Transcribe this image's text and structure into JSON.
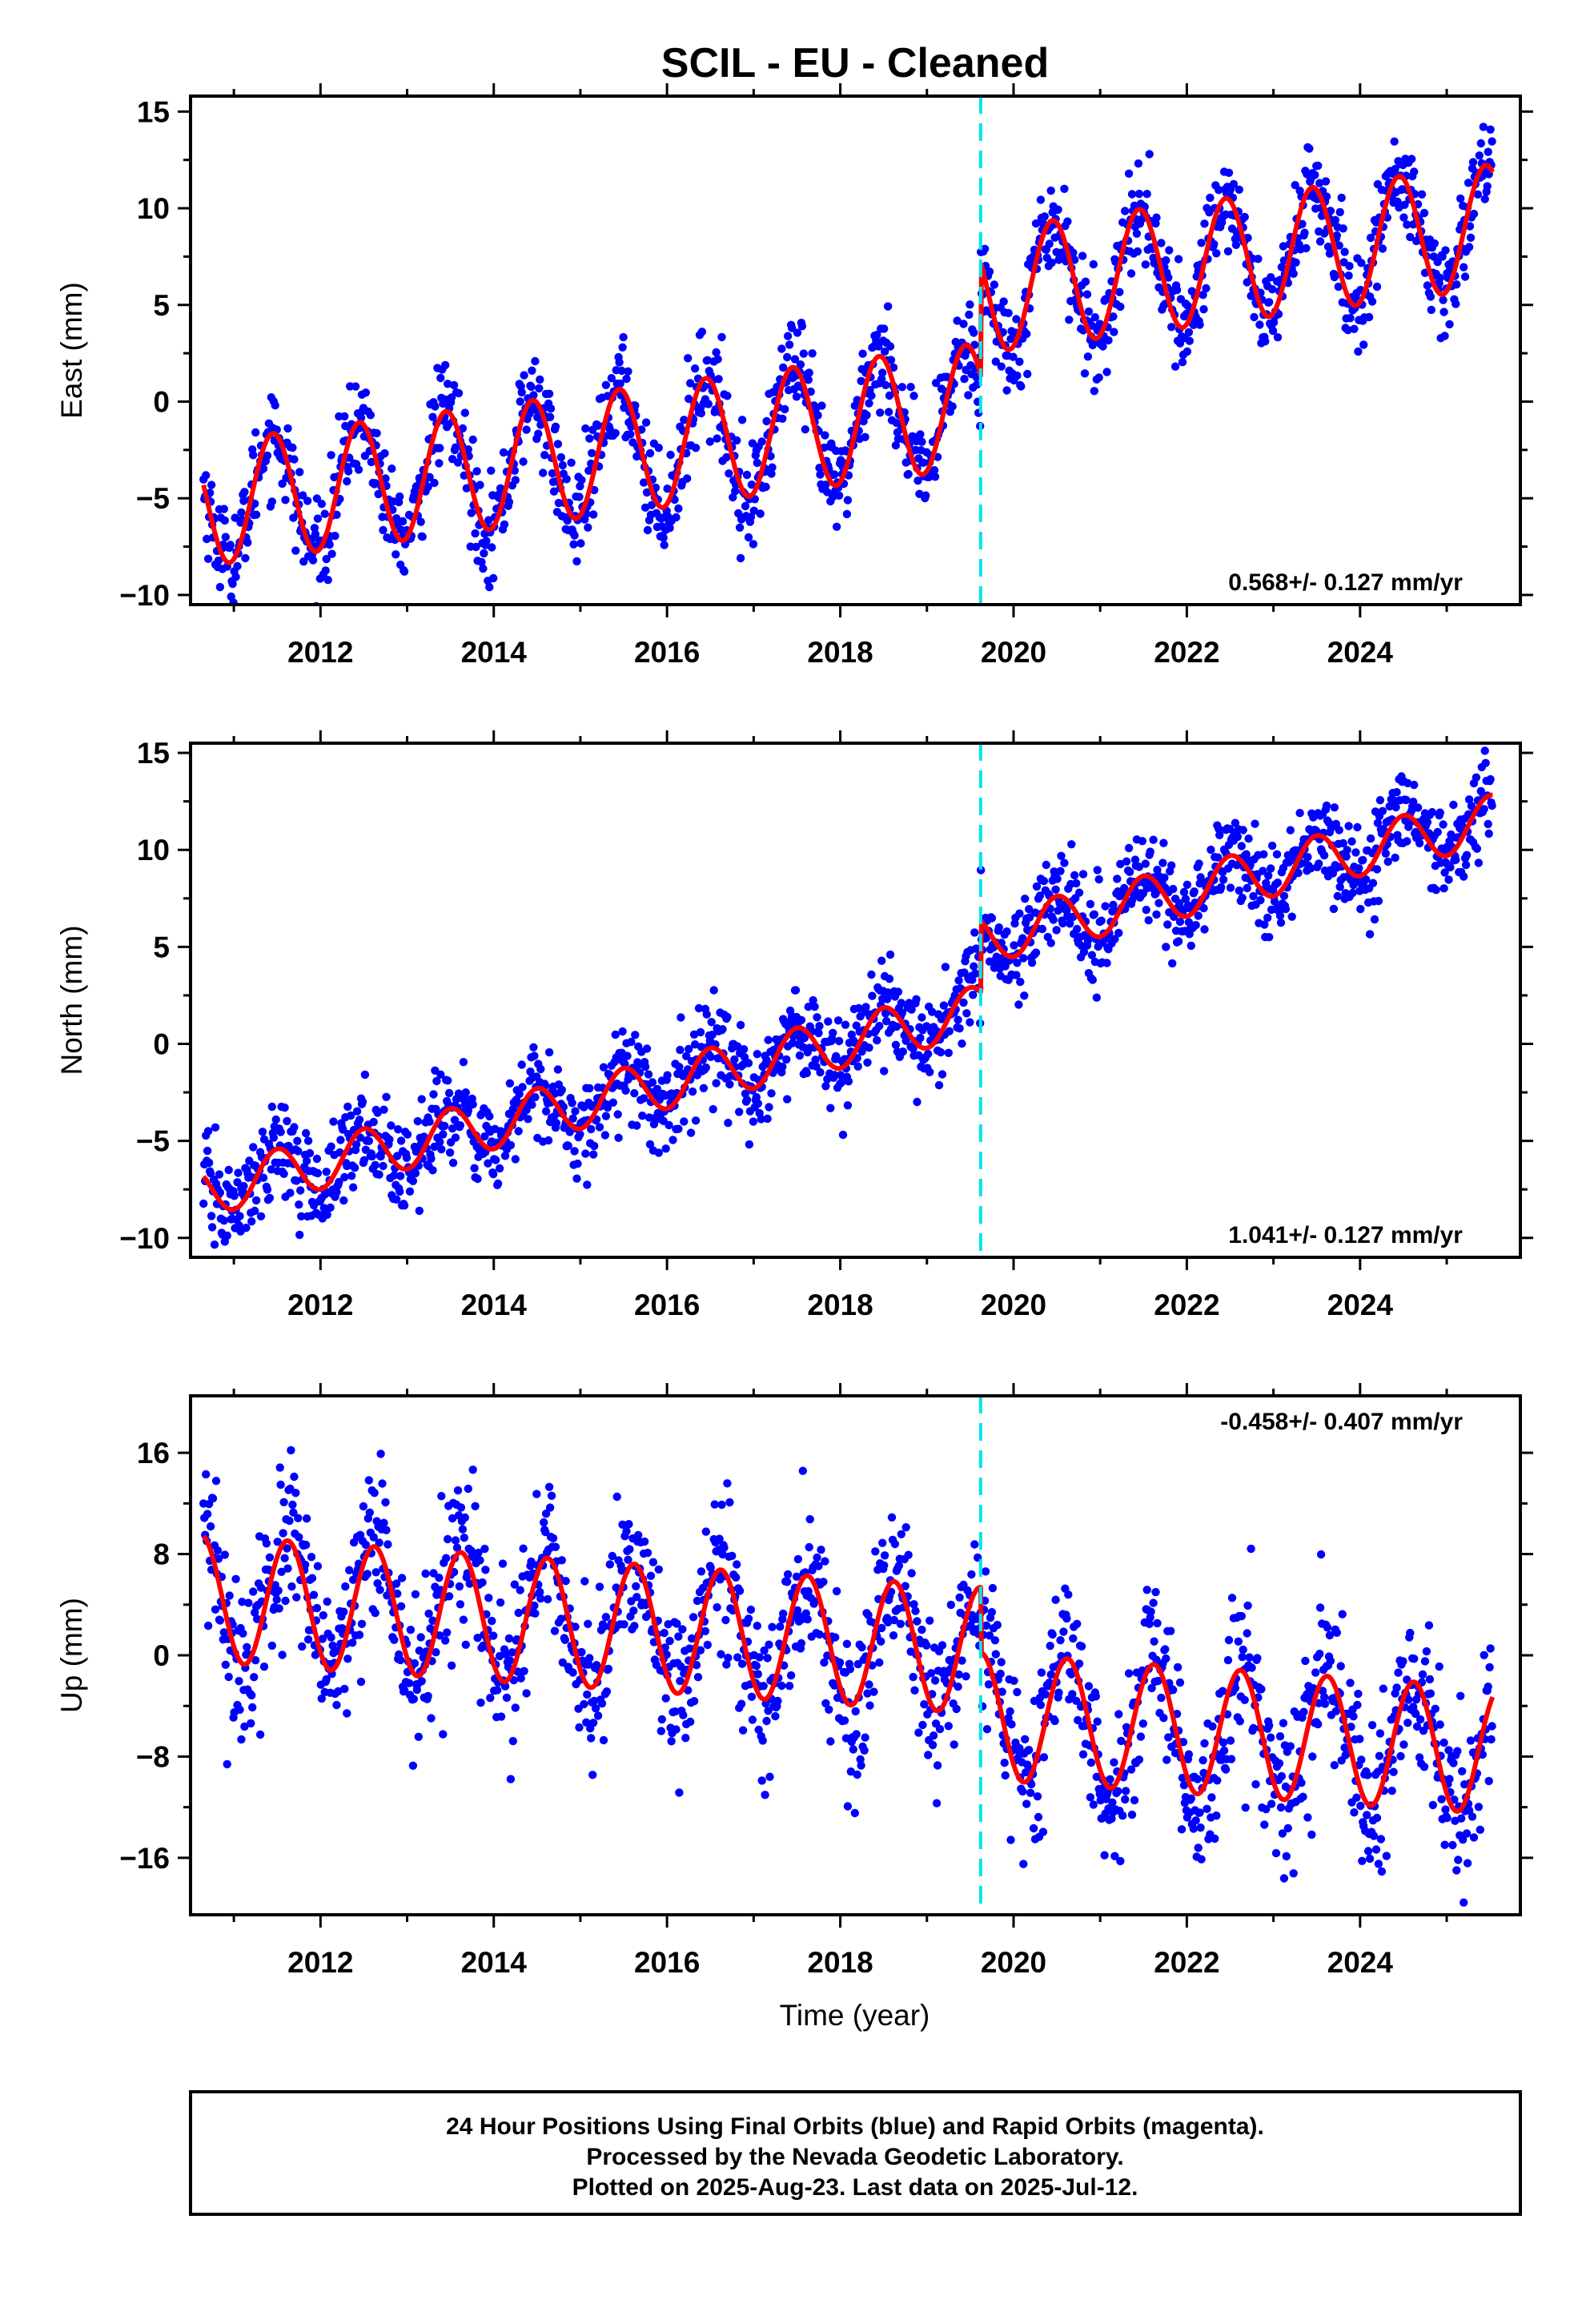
{
  "title": "SCIL  - EU - Cleaned",
  "colors": {
    "data": "#0000ff",
    "model": "#ff0000",
    "offset": "#00e5ee",
    "frame": "#000000"
  },
  "chart_data": [
    {
      "type": "scatter",
      "ylabel": "East (mm)",
      "xlabel": "",
      "xlim": [
        2010.5,
        2025.85
      ],
      "ylim": [
        -10.5,
        15.8
      ],
      "x_ticks": [
        2012,
        2014,
        2016,
        2018,
        2020,
        2022,
        2024
      ],
      "y_ticks": [
        -10,
        -5,
        0,
        5,
        10,
        15
      ],
      "y_minor": [
        -7.5,
        -2.5,
        2.5,
        7.5,
        12.5
      ],
      "rate_text": "0.568+/- 0.127 mm/yr",
      "rate_position": "bottom-right",
      "offset_epoch": 2019.62,
      "model": {
        "start": 2010.65,
        "end": 2025.53,
        "pre_base": -5.3,
        "pre_slope": 0.57,
        "post_base": 5.7,
        "post_slope": 0.57,
        "annual_amp": 3.2,
        "annual_phase_peak": 0.45,
        "jump_bump": 0
      },
      "data_scatter": 1.3
    },
    {
      "type": "scatter",
      "ylabel": "North (mm)",
      "xlabel": "",
      "xlim": [
        2010.5,
        2025.85
      ],
      "ylim": [
        -11.0,
        15.5
      ],
      "x_ticks": [
        2012,
        2014,
        2016,
        2018,
        2020,
        2022,
        2024
      ],
      "y_ticks": [
        -10,
        -5,
        0,
        5,
        10,
        15
      ],
      "y_minor": [
        -7.5,
        -2.5,
        2.5,
        7.5,
        12.5
      ],
      "rate_text": "1.041+/- 0.127 mm/yr",
      "rate_position": "bottom-right",
      "offset_epoch": 2019.62,
      "model": {
        "start": 2010.65,
        "end": 2025.53,
        "pre_base": -7.6,
        "pre_slope": 1.04,
        "post_base": 5.4,
        "post_slope": 1.04,
        "annual_amp": 1.3,
        "annual_phase_peak": 0.5,
        "jump_bump": 0
      },
      "data_scatter": 1.2
    },
    {
      "type": "scatter",
      "ylabel": "Up (mm)",
      "xlabel": "Time (year)",
      "xlim": [
        2010.5,
        2025.85
      ],
      "ylim": [
        -20.5,
        20.5
      ],
      "x_ticks": [
        2012,
        2014,
        2016,
        2018,
        2020,
        2022,
        2024
      ],
      "y_ticks": [
        -16,
        -8,
        0,
        8,
        16
      ],
      "y_minor": [
        -12,
        -4,
        4,
        12
      ],
      "rate_text": "-0.458+/- 0.407 mm/yr",
      "rate_position": "top-right",
      "offset_epoch": 2019.62,
      "model": {
        "start": 2010.65,
        "end": 2025.53,
        "pre_base": 4.5,
        "pre_slope": -0.46,
        "post_base": -4.8,
        "post_slope": -0.46,
        "annual_amp": 5.0,
        "annual_phase_peak": 0.62,
        "jump_bump": 0
      },
      "data_scatter": 3.2
    }
  ],
  "footer": {
    "line1": "24 Hour Positions Using Final Orbits (blue) and Rapid Orbits (magenta).",
    "line2": "Processed by the Nevada Geodetic Laboratory.",
    "line3": "Plotted on 2025-Aug-23. Last data on 2025-Jul-12."
  }
}
